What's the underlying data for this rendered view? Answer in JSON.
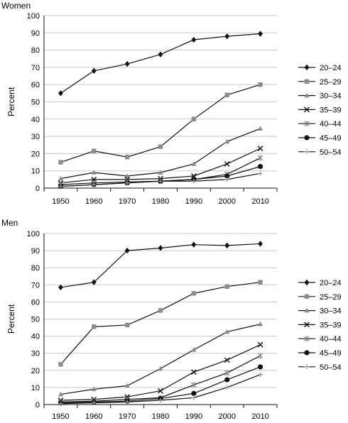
{
  "colors": {
    "20–24": "#111111",
    "25–29": "#8c8c8c",
    "30–34": "#8c8c8c",
    "35–39": "#111111",
    "40–44": "#8c8c8c",
    "45–49": "#111111",
    "50–54": "#9a9a9a",
    "grid": "#c8c8c8"
  },
  "chart_data": [
    {
      "type": "line",
      "title": "Women",
      "xlabel": "",
      "ylabel": "Percent",
      "x": [
        1950,
        1960,
        1970,
        1980,
        1990,
        2000,
        2010
      ],
      "yticks": [
        0,
        10,
        20,
        30,
        40,
        50,
        60,
        70,
        80,
        90,
        100
      ],
      "ylim": [
        0,
        100
      ],
      "grid": true,
      "legend": "right",
      "series": [
        {
          "name": "20–24",
          "marker": "diamond",
          "values": [
            55,
            68,
            72,
            77.5,
            86,
            88,
            89.5
          ]
        },
        {
          "name": "25–29",
          "marker": "square",
          "values": [
            15,
            21.5,
            18,
            24,
            40,
            54,
            60
          ]
        },
        {
          "name": "30–34",
          "marker": "triangle",
          "values": [
            5.5,
            9,
            7,
            9,
            14,
            27,
            34.5
          ]
        },
        {
          "name": "35–39",
          "marker": "x",
          "values": [
            3,
            5,
            5,
            5.5,
            7,
            14,
            23
          ]
        },
        {
          "name": "40–44",
          "marker": "star",
          "values": [
            2,
            3,
            3.5,
            4,
            5,
            8,
            17.5
          ]
        },
        {
          "name": "45–49",
          "marker": "circle",
          "values": [
            1,
            2,
            3,
            4,
            5,
            7,
            12.5
          ]
        },
        {
          "name": "50–54",
          "marker": "plus",
          "values": [
            1,
            2,
            3,
            4,
            4,
            5,
            8.5
          ]
        }
      ]
    },
    {
      "type": "line",
      "title": "Men",
      "xlabel": "",
      "ylabel": "Percent",
      "x": [
        1950,
        1960,
        1970,
        1980,
        1990,
        2000,
        2010
      ],
      "yticks": [
        0,
        10,
        20,
        30,
        40,
        50,
        60,
        70,
        80,
        90,
        100
      ],
      "ylim": [
        0,
        100
      ],
      "grid": true,
      "legend": "right",
      "series": [
        {
          "name": "20–24",
          "marker": "diamond",
          "values": [
            68.5,
            71.5,
            90,
            91.5,
            93.5,
            93,
            94
          ]
        },
        {
          "name": "25–29",
          "marker": "square",
          "values": [
            23.5,
            45.5,
            46.5,
            55,
            65,
            69,
            71.5
          ]
        },
        {
          "name": "30–34",
          "marker": "triangle",
          "values": [
            6,
            9,
            11,
            21,
            32,
            42.5,
            47
          ]
        },
        {
          "name": "35–39",
          "marker": "x",
          "values": [
            2.5,
            3,
            4.5,
            8,
            19,
            26,
            35
          ]
        },
        {
          "name": "40–44",
          "marker": "star",
          "values": [
            1.5,
            2,
            3,
            4,
            11.5,
            18.5,
            28.5
          ]
        },
        {
          "name": "45–49",
          "marker": "circle",
          "values": [
            1,
            1.5,
            2,
            3.5,
            6.5,
            14.5,
            22
          ]
        },
        {
          "name": "50–54",
          "marker": "plus",
          "values": [
            0.5,
            1,
            1.5,
            2.5,
            4,
            10,
            17.5
          ]
        }
      ]
    }
  ]
}
